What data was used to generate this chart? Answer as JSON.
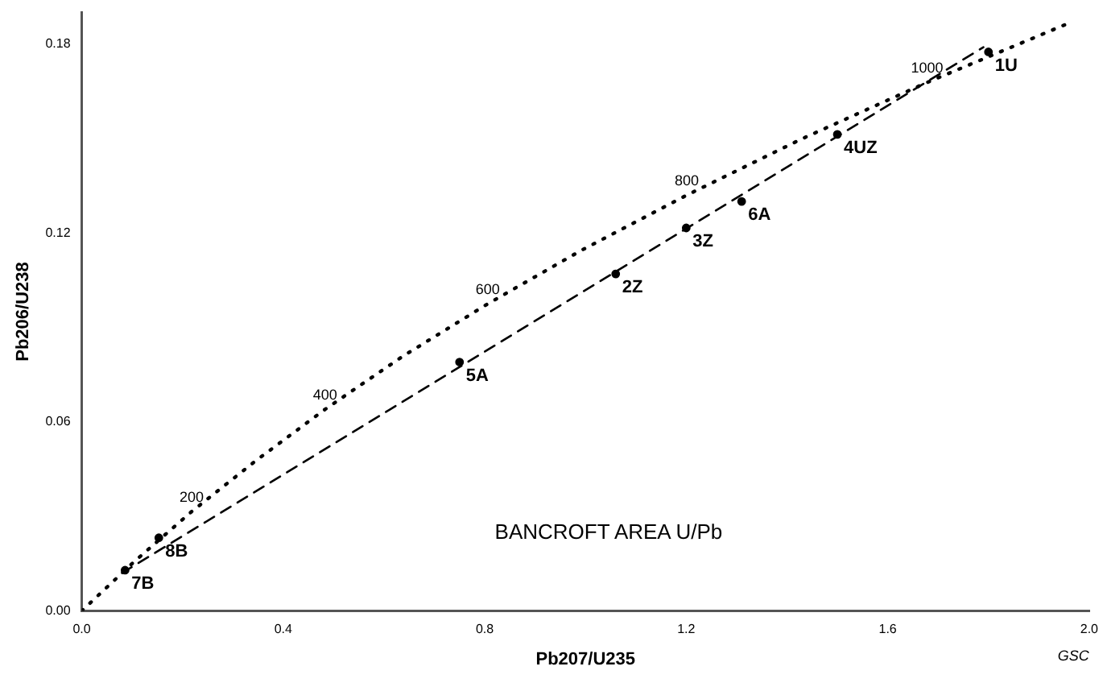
{
  "chart_data": {
    "type": "line",
    "title": "BANCROFT AREA U/Pb",
    "xlabel": "Pb207/U235",
    "ylabel": "Pb206/U238",
    "xlim": [
      0,
      2.0
    ],
    "ylim": [
      0,
      0.19
    ],
    "xticks": [
      {
        "value": 0,
        "label": "0.0"
      },
      {
        "value": 0.4,
        "label": "0.4"
      },
      {
        "value": 0.8,
        "label": "0.8"
      },
      {
        "value": 1.2,
        "label": "1.2"
      },
      {
        "value": 1.6,
        "label": "1.6"
      },
      {
        "value": 2.0,
        "label": "2.0"
      }
    ],
    "yticks": [
      {
        "value": 0,
        "label": "0.00"
      },
      {
        "value": 0.06,
        "label": "0.06"
      },
      {
        "value": 0.12,
        "label": "0.12"
      },
      {
        "value": 0.18,
        "label": "0.18"
      }
    ],
    "grid": false,
    "legend": false,
    "series": [
      {
        "line_style": "dotted",
        "marker": "none",
        "color": "#000000",
        "x": [
          0,
          0.104,
          0.218,
          0.345,
          0.483,
          0.636,
          0.806,
          0.993,
          1.201,
          1.427,
          1.678,
          1.953
        ],
        "values": [
          0,
          0.0156,
          0.0315,
          0.0476,
          0.064,
          0.0807,
          0.0975,
          0.1146,
          0.132,
          0.1497,
          0.1678,
          0.1862
        ]
      },
      {
        "type": "line",
        "line_style": "dashed",
        "marker": "none",
        "color": "#000000",
        "x": [
          0.08,
          1.79
        ],
        "values": [
          0.012,
          0.179
        ]
      },
      {
        "type": "scatter",
        "marker": "circle",
        "color": "#000000",
        "x": [
          0.086,
          0.153,
          0.75,
          1.06,
          1.2,
          1.31,
          1.5,
          1.8
        ],
        "values": [
          0.0129,
          0.0232,
          0.079,
          0.107,
          0.1216,
          0.13,
          0.1513,
          0.1775
        ]
      }
    ],
    "annotations": [
      {
        "text": "200",
        "x": 0.218,
        "y": 0.0315
      },
      {
        "text": "400",
        "x": 0.483,
        "y": 0.064
      },
      {
        "text": "600",
        "x": 0.806,
        "y": 0.0975
      },
      {
        "text": "800",
        "x": 1.201,
        "y": 0.132
      },
      {
        "text": "1000",
        "x": 1.678,
        "y": 0.1678
      },
      {
        "text": "7B",
        "x": 0.086,
        "y": 0.0129
      },
      {
        "text": "8B",
        "x": 0.153,
        "y": 0.0232
      },
      {
        "text": "5A",
        "x": 0.75,
        "y": 0.079
      },
      {
        "text": "2Z",
        "x": 1.06,
        "y": 0.107
      },
      {
        "text": "3Z",
        "x": 1.2,
        "y": 0.1216
      },
      {
        "text": "6A",
        "x": 1.31,
        "y": 0.13
      },
      {
        "text": "4UZ",
        "x": 1.5,
        "y": 0.1513
      },
      {
        "text": "1U",
        "x": 1.8,
        "y": 0.1775
      },
      "GSC"
    ]
  }
}
